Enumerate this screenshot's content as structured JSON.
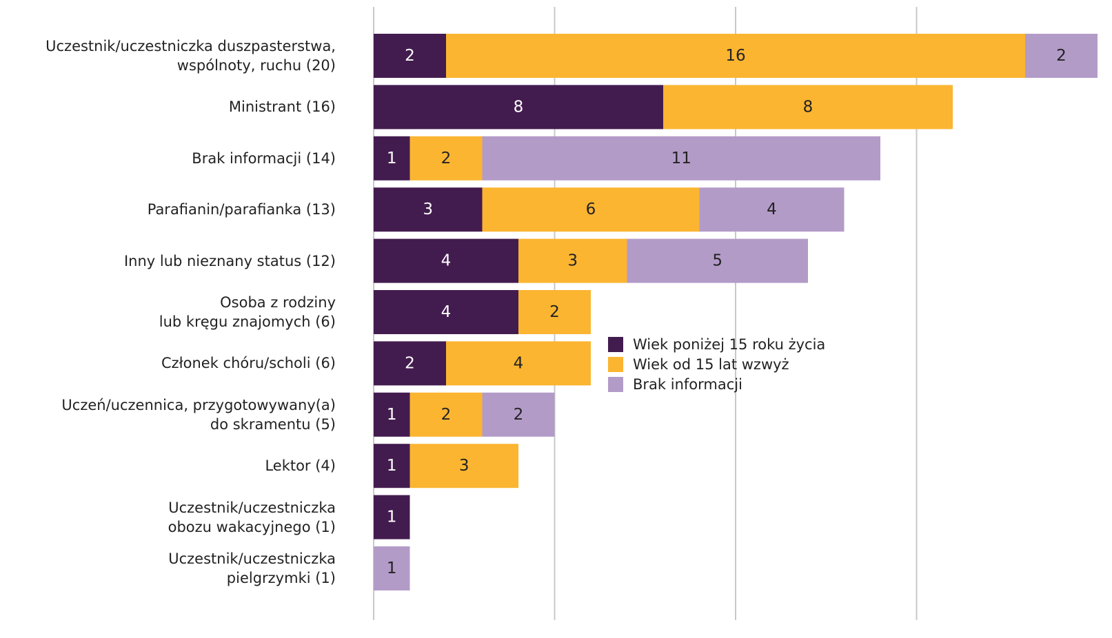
{
  "chart_data": {
    "type": "stacked_barh",
    "categories": [
      "Uczestnik/uczestniczka duszpasterstwa,\nwspólnoty, ruchu (20)",
      "Ministrant (16)",
      "Brak informacji (14)",
      "Parafianin/parafianka (13)",
      "Inny lub nieznany status (12)",
      "Osoba z rodziny\nlub kręgu znajomych (6)",
      "Członek chóru/scholi (6)",
      "Uczeń/uczennica, przygotowywany(a)\ndo skramentu (5)",
      "Lektor (4)",
      "Uczestnik/uczestniczka\nobozu wakacyjnego (1)",
      "Uczestnik/uczestniczka\npielgrzymki (1)"
    ],
    "series": [
      {
        "name": "Wiek poniżej 15 roku życia",
        "color": "#431c4f",
        "values": [
          2,
          8,
          1,
          3,
          4,
          4,
          2,
          1,
          1,
          1,
          0
        ]
      },
      {
        "name": "Wiek od 15 lat wzwyż",
        "color": "#fbb531",
        "values": [
          16,
          8,
          2,
          6,
          3,
          2,
          4,
          2,
          3,
          0,
          0
        ]
      },
      {
        "name": "Brak informacji",
        "color": "#b39bc8",
        "values": [
          2,
          0,
          11,
          4,
          5,
          0,
          0,
          2,
          0,
          0,
          1
        ]
      }
    ],
    "xlim": [
      0,
      20
    ],
    "xticks": [
      0,
      5,
      10,
      15
    ],
    "grid": true
  }
}
